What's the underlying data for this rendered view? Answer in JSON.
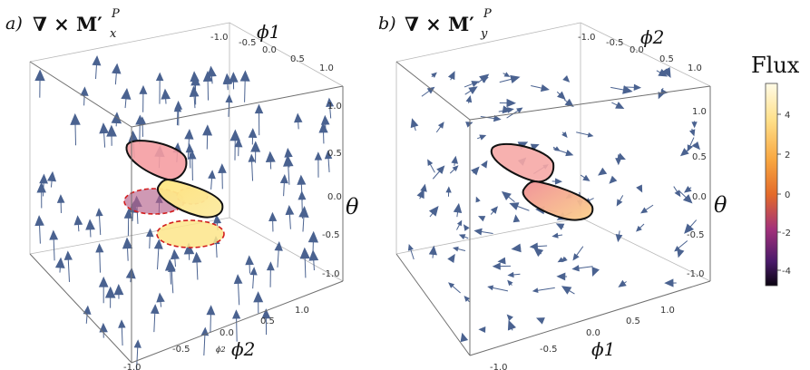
{
  "panels": [
    {
      "label": "a)",
      "operator": "∇ × M′",
      "sub": "x",
      "sup": "P",
      "axis_top": "ϕ1",
      "axis_bottom": "ϕ2",
      "axis_bottom_small": "ϕ2",
      "axis_right": "θ"
    },
    {
      "label": "b)",
      "operator": "∇ × M′",
      "sub": "y",
      "sup": "P",
      "axis_top": "ϕ2",
      "axis_bottom": "ϕ1",
      "axis_right": "θ"
    }
  ],
  "ticks": [
    "-1.0",
    "-0.5",
    "0.0",
    "0.5",
    "1.0"
  ],
  "colorbar": {
    "title": "Flux",
    "ticks": [
      "4",
      "2",
      "0",
      "-2",
      "-4"
    ]
  },
  "colors": {
    "arrow": "#4a6290",
    "loop_fill_pink": "#f3a39f",
    "loop_fill_yellow": "#ffe680",
    "dashed_loop": "#d21e1e"
  }
}
